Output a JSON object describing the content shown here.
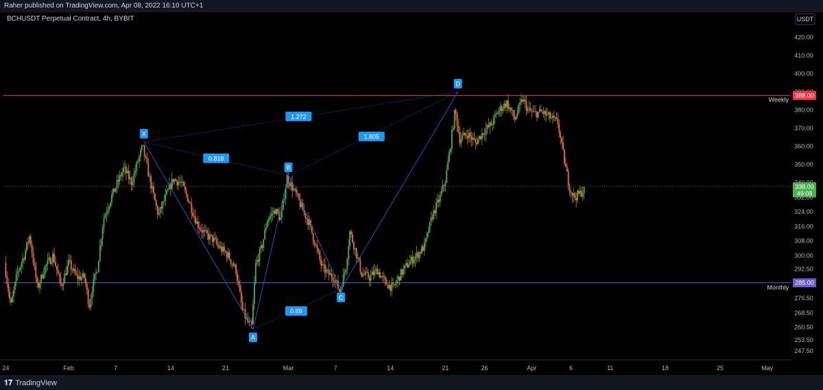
{
  "header": {
    "published": "Raher published on TradingView.com, Apr 08, 2022 16:10 UTC+1"
  },
  "symbol": {
    "title": "BCHUSDT Perpetual Contract, 4h, BYBIT"
  },
  "footer": {
    "brand": "TradingView"
  },
  "chart_data": {
    "type": "candlestick",
    "ylim": [
      243,
      427
    ],
    "y_ticks": [
      "420.00",
      "410.00",
      "400.00",
      "390.00",
      "380.00",
      "370.00",
      "360.00",
      "350.00",
      "340.00",
      "332.00",
      "324.00",
      "316.00",
      "308.00",
      "300.00",
      "292.50",
      "285.00",
      "276.50",
      "268.50",
      "260.50",
      "253.50",
      "247.50"
    ],
    "y_tick_values": [
      420,
      410,
      400,
      390,
      380,
      370,
      360,
      350,
      340,
      332,
      324,
      316,
      308,
      300,
      292.5,
      285,
      276.5,
      268.5,
      260.5,
      253.5,
      247.5
    ],
    "currency": "USDT",
    "x_ticks": [
      {
        "label": "24",
        "day": 0
      },
      {
        "label": "Feb",
        "day": 8
      },
      {
        "label": "7",
        "day": 14
      },
      {
        "label": "14",
        "day": 21
      },
      {
        "label": "21",
        "day": 28
      },
      {
        "label": "Mar",
        "day": 36
      },
      {
        "label": "7",
        "day": 42
      },
      {
        "label": "14",
        "day": 49
      },
      {
        "label": "21",
        "day": 56
      },
      {
        "label": "26",
        "day": 61
      },
      {
        "label": "Apr",
        "day": 67
      },
      {
        "label": "6",
        "day": 72
      },
      {
        "label": "11",
        "day": 77
      },
      {
        "label": "18",
        "day": 84
      },
      {
        "label": "25",
        "day": 91
      },
      {
        "label": "May",
        "day": 97
      }
    ],
    "x_range_days": [
      -0.3,
      100
    ],
    "levels": [
      {
        "name": "Weekly",
        "price": 388.0,
        "label": "388.00",
        "color": "#f23645"
      },
      {
        "name": "Monthly",
        "price": 285.0,
        "label": "285.00",
        "color": "#6a5acd"
      }
    ],
    "last_price": {
      "price": 338.0,
      "label": "338.00",
      "countdown": "49:08",
      "color": "#4caf50"
    },
    "pattern_points": [
      {
        "label": "X",
        "day": 17.6,
        "price": 362.5
      },
      {
        "label": "A",
        "day": 31.5,
        "price": 259.5
      },
      {
        "label": "B",
        "day": 36.0,
        "price": 344.0
      },
      {
        "label": "C",
        "day": 42.7,
        "price": 281.5
      },
      {
        "label": "D",
        "day": 57.6,
        "price": 390.0
      }
    ],
    "ratios": [
      {
        "label": "0.818",
        "day": 26.8,
        "price": 353.5
      },
      {
        "label": "1.272",
        "day": 37.3,
        "price": 376.5
      },
      {
        "label": "1.805",
        "day": 46.6,
        "price": 365.5
      },
      {
        "label": "0.69",
        "day": 37.0,
        "price": 269.5
      }
    ],
    "price_path": [
      [
        0,
        296
      ],
      [
        0.8,
        272
      ],
      [
        1.6,
        290
      ],
      [
        2.5,
        300
      ],
      [
        3.2,
        311
      ],
      [
        4.2,
        282
      ],
      [
        5.2,
        294
      ],
      [
        6.2,
        300
      ],
      [
        7.2,
        283
      ],
      [
        8.2,
        296
      ],
      [
        9.2,
        288
      ],
      [
        10.2,
        288
      ],
      [
        10.8,
        272
      ],
      [
        11.2,
        283
      ],
      [
        11.8,
        292
      ],
      [
        12.6,
        320
      ],
      [
        13.6,
        332
      ],
      [
        14.4,
        340
      ],
      [
        15.2,
        348
      ],
      [
        16.2,
        340
      ],
      [
        17.0,
        352
      ],
      [
        17.6,
        360
      ],
      [
        18.6,
        340
      ],
      [
        19.6,
        322
      ],
      [
        20.6,
        333
      ],
      [
        21.5,
        342
      ],
      [
        22.5,
        340
      ],
      [
        23.5,
        330
      ],
      [
        24.5,
        318
      ],
      [
        25.5,
        312
      ],
      [
        26.5,
        309
      ],
      [
        27.5,
        304
      ],
      [
        28.5,
        300
      ],
      [
        29.5,
        292
      ],
      [
        30.3,
        270
      ],
      [
        31.0,
        263
      ],
      [
        31.5,
        261
      ],
      [
        32.0,
        295
      ],
      [
        32.8,
        305
      ],
      [
        33.5,
        320
      ],
      [
        34.5,
        325
      ],
      [
        35.2,
        320
      ],
      [
        36.0,
        343
      ],
      [
        36.6,
        338
      ],
      [
        37.2,
        333
      ],
      [
        38.0,
        325
      ],
      [
        38.8,
        318
      ],
      [
        39.6,
        306
      ],
      [
        40.4,
        294
      ],
      [
        41.2,
        290
      ],
      [
        42.0,
        288
      ],
      [
        42.7,
        280
      ],
      [
        43.5,
        294
      ],
      [
        44.0,
        313
      ],
      [
        44.5,
        306
      ],
      [
        45.5,
        290
      ],
      [
        46.5,
        288
      ],
      [
        47.5,
        292
      ],
      [
        48.5,
        285
      ],
      [
        49.5,
        282
      ],
      [
        50.5,
        290
      ],
      [
        51.5,
        296
      ],
      [
        52.5,
        300
      ],
      [
        53.5,
        305
      ],
      [
        54.5,
        322
      ],
      [
        55.5,
        332
      ],
      [
        56.2,
        342
      ],
      [
        56.8,
        360
      ],
      [
        57.4,
        380
      ],
      [
        58.0,
        364
      ],
      [
        59.0,
        367
      ],
      [
        60.0,
        362
      ],
      [
        61.0,
        368
      ],
      [
        62.0,
        372
      ],
      [
        63.0,
        380
      ],
      [
        64.0,
        384
      ],
      [
        65.0,
        375
      ],
      [
        66.0,
        386
      ],
      [
        66.7,
        380
      ],
      [
        67.5,
        378
      ],
      [
        68.5,
        379
      ],
      [
        69.5,
        376
      ],
      [
        70.5,
        373
      ],
      [
        71.0,
        360
      ],
      [
        71.5,
        348
      ],
      [
        72.0,
        337
      ],
      [
        72.6,
        332
      ],
      [
        73.3,
        334
      ],
      [
        73.8,
        336
      ]
    ]
  }
}
